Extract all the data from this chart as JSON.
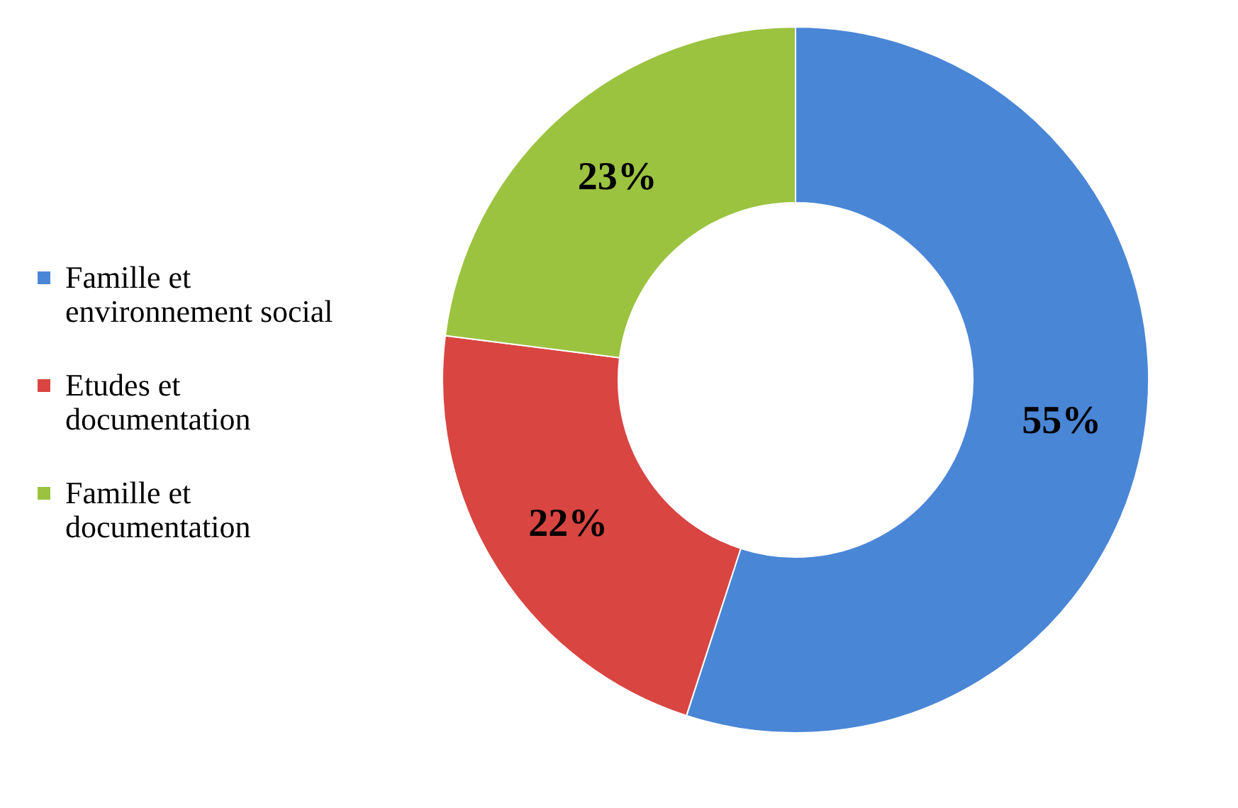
{
  "chart_data": {
    "type": "donut",
    "categories": [
      "Famille et environnement social",
      "Etudes et documentation",
      "Famille et documentation"
    ],
    "values": [
      55,
      22,
      23
    ],
    "colors": [
      "#4a86d6",
      "#d94541",
      "#9bc340"
    ],
    "value_labels": [
      "55%",
      "22%",
      "23%"
    ],
    "legend": "left"
  }
}
